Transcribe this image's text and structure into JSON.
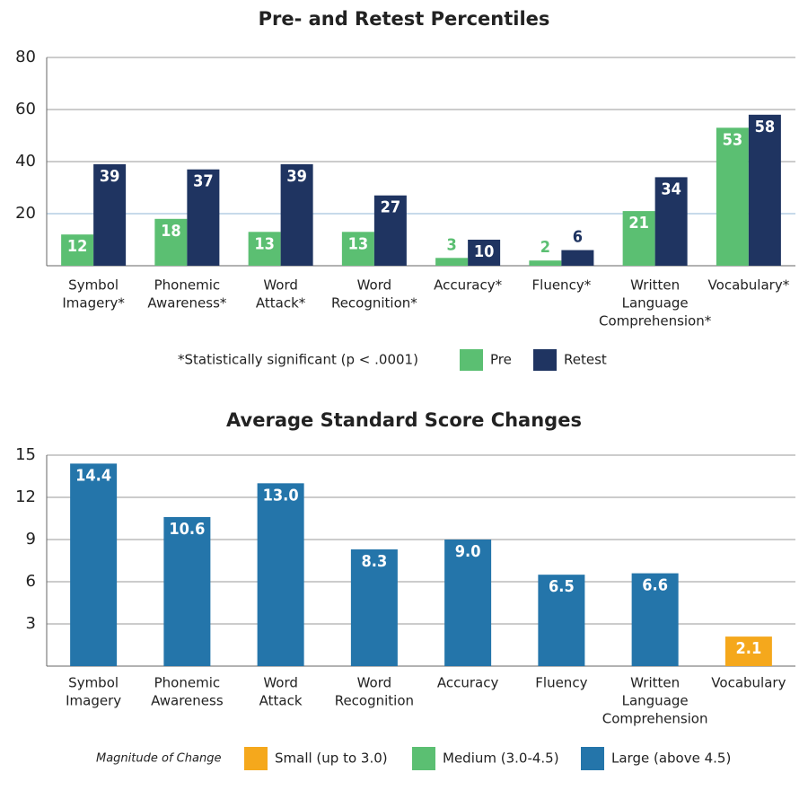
{
  "chart_data": [
    {
      "type": "grouped-bar",
      "title": "Pre- and Retest Percentiles",
      "categories": [
        [
          "Symbol",
          "Imagery*"
        ],
        [
          "Phonemic",
          "Awareness*"
        ],
        [
          "Word",
          "Attack*"
        ],
        [
          "Word",
          "Recognition*"
        ],
        [
          "Accuracy*"
        ],
        [
          "Fluency*"
        ],
        [
          "Written",
          "Language",
          "Comprehension*"
        ],
        [
          "Vocabulary*"
        ]
      ],
      "series": [
        {
          "name": "Pre",
          "color": "#5bbf72",
          "values": [
            12,
            18,
            13,
            13,
            3,
            2,
            21,
            53
          ]
        },
        {
          "name": "Retest",
          "color": "#1f3461",
          "values": [
            39,
            37,
            39,
            27,
            10,
            6,
            34,
            58
          ]
        }
      ],
      "ylim": [
        0,
        80
      ],
      "yticks": [
        20,
        40,
        60,
        80
      ],
      "grid": true,
      "legend": "bottom",
      "annotation": "*Statistically significant (p < .0001)"
    },
    {
      "type": "bar",
      "title": "Average Standard Score Changes",
      "categories": [
        [
          "Symbol",
          "Imagery"
        ],
        [
          "Phonemic",
          "Awareness"
        ],
        [
          "Word",
          "Attack"
        ],
        [
          "Word",
          "Recognition"
        ],
        [
          "Accuracy"
        ],
        [
          "Fluency"
        ],
        [
          "Written",
          "Language",
          "Comprehension"
        ],
        [
          "Vocabulary"
        ]
      ],
      "values": [
        14.4,
        10.6,
        13.0,
        8.3,
        9.0,
        6.5,
        6.6,
        2.1
      ],
      "value_labels": [
        "14.4",
        "10.6",
        "13.0",
        "8.3",
        "9.0",
        "6.5",
        "6.6",
        "2.1"
      ],
      "colors": [
        "#2475aa",
        "#2475aa",
        "#2475aa",
        "#2475aa",
        "#2475aa",
        "#2475aa",
        "#2475aa",
        "#f5a81c"
      ],
      "ylim": [
        0,
        15
      ],
      "yticks": [
        3,
        6,
        9,
        12,
        15
      ],
      "grid": true,
      "legend": "bottom",
      "legend_title": "Magnitude of Change",
      "legend_items": [
        {
          "label": "Small (up to 3.0)",
          "color": "#f5a81c"
        },
        {
          "label": "Medium (3.0-4.5)",
          "color": "#5bbf72"
        },
        {
          "label": "Large (above 4.5)",
          "color": "#2475aa"
        }
      ]
    }
  ]
}
